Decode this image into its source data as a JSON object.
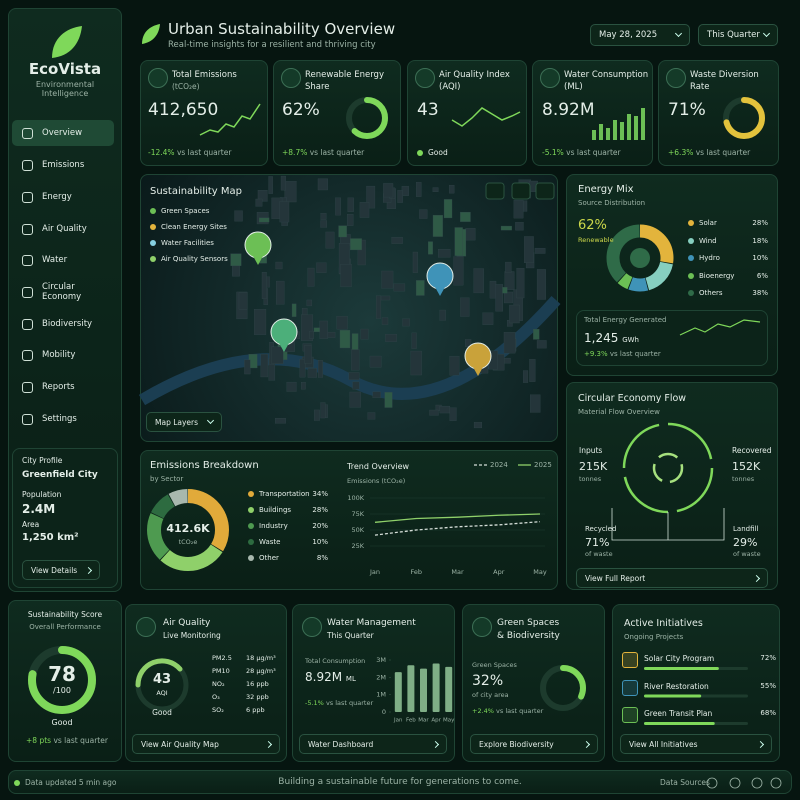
{
  "brand": {
    "name": "EcoVista",
    "tagline": "Environmental Intelligence"
  },
  "header": {
    "title": "Urban Sustainability Overview",
    "subtitle": "Real-time insights for a resilient and thriving city",
    "date": "May 28, 2025",
    "period": "This Quarter"
  },
  "nav": [
    "Overview",
    "Emissions",
    "Energy",
    "Air Quality",
    "Water",
    "Circular Economy",
    "Biodiversity",
    "Mobility",
    "Reports",
    "Settings"
  ],
  "city_profile": {
    "heading": "City Profile",
    "name": "Greenfield City",
    "population_label": "Population",
    "population": "2.4M",
    "area_label": "Area",
    "area": "1,250 km²",
    "button": "View Details"
  },
  "score": {
    "title": "Sustainability Score",
    "subtitle": "Overall Performance",
    "value": 78,
    "max_label": "/100",
    "status": "Good",
    "change": "+8 pts",
    "note": "vs last quarter"
  },
  "kpis": [
    {
      "title": "Total Emissions",
      "subtitle": "(tCO₂e)",
      "value": "412,650",
      "change": "-12.4%",
      "note": "vs last quarter"
    },
    {
      "title": "Renewable Energy",
      "subtitle": "Share",
      "value": 62,
      "unit": "%",
      "change": "+8.7%",
      "note": "vs last quarter"
    },
    {
      "title": "Air Quality Index",
      "subtitle": "(AQI)",
      "value": "43",
      "status": "Good"
    },
    {
      "title": "Water Consumption",
      "subtitle": "(ML)",
      "value": "8.92M",
      "change": "-5.1%",
      "note": "vs last quarter"
    },
    {
      "title": "Waste Diversion",
      "subtitle": "Rate",
      "value": 71,
      "unit": "%",
      "change": "+6.3%",
      "note": "vs last quarter"
    }
  ],
  "map": {
    "title": "Sustainability Map",
    "legend": [
      "Green Spaces",
      "Clean Energy Sites",
      "Water Facilities",
      "Air Quality Sensors"
    ],
    "button": "Map Layers"
  },
  "energy_mix": {
    "title": "Energy Mix",
    "subtitle": "Source Distribution",
    "renewable": 62,
    "unit": "%",
    "renewable_label": "Renewable",
    "sources": [
      {
        "name": "Solar",
        "value": 28,
        "color": "#e3b43c"
      },
      {
        "name": "Wind",
        "value": 18,
        "color": "#86cfc0"
      },
      {
        "name": "Hydro",
        "value": 10,
        "color": "#3f93b8"
      },
      {
        "name": "Bioenergy",
        "value": 6,
        "color": "#6cbf55"
      },
      {
        "name": "Others",
        "value": 38,
        "color": "#2f6b48"
      }
    ],
    "total_label": "Total Energy Generated",
    "total": "1,245",
    "total_unit": "GWh",
    "change": "+9.3%",
    "note": "vs last quarter"
  },
  "emissions": {
    "title": "Emissions Breakdown",
    "subtitle": "by Sector",
    "center_value": "412.6K",
    "center_unit": "tCO₂e",
    "unit": "%",
    "sectors": [
      {
        "name": "Transportation",
        "value": 34,
        "color": "#e1aa3a"
      },
      {
        "name": "Buildings",
        "value": 28,
        "color": "#8fd06a"
      },
      {
        "name": "Industry",
        "value": 20,
        "color": "#4e9a50"
      },
      {
        "name": "Waste",
        "value": 10,
        "color": "#2d6b40"
      },
      {
        "name": "Other",
        "value": 8,
        "color": "#a8b8ae"
      }
    ]
  },
  "trend": {
    "title": "Trend Overview",
    "subtitle": "Emissions (tCO₂e)",
    "categories": [
      "Jan",
      "Feb",
      "Mar",
      "Apr",
      "May"
    ],
    "ylim": [
      0,
      100000
    ],
    "yticks": [
      {
        "value": 25000,
        "label": "25K"
      },
      {
        "value": 50000,
        "label": "50K"
      },
      {
        "value": 75000,
        "label": "75K"
      },
      {
        "value": 100000,
        "label": "100K"
      }
    ],
    "series": [
      {
        "name": "2024",
        "color": "#d4ddd7",
        "dashed": true,
        "values": [
          42000,
          50000,
          55000,
          58000,
          63000
        ]
      },
      {
        "name": "2025",
        "color": "#8fd06a",
        "dashed": false,
        "values": [
          62000,
          68000,
          70000,
          73000,
          75000
        ]
      }
    ]
  },
  "circular": {
    "title": "Circular Economy Flow",
    "subtitle": "Material Flow Overview",
    "inputs_label": "Inputs",
    "inputs": "215K",
    "inputs_unit": "tonnes",
    "recovered_label": "Recovered",
    "recovered": "152K",
    "recovered_unit": "tonnes",
    "recycled_label": "Recycled",
    "recycled": "71%",
    "recycled_unit": "of waste",
    "landfill_label": "Landfill",
    "landfill": "29%",
    "landfill_unit": "of waste",
    "button": "View Full Report"
  },
  "air_quality": {
    "title": "Air Quality",
    "subtitle": "Live Monitoring",
    "value": "43",
    "unit": "AQI",
    "status": "Good",
    "pollutants": [
      {
        "name": "PM2.5",
        "value": "18 µg/m³"
      },
      {
        "name": "PM10",
        "value": "28 µg/m³"
      },
      {
        "name": "NO₂",
        "value": "16 ppb"
      },
      {
        "name": "O₃",
        "value": "32 ppb"
      },
      {
        "name": "SO₂",
        "value": "6 ppb"
      }
    ],
    "button": "View Air Quality Map"
  },
  "water": {
    "title": "Water Management",
    "subtitle": "This Quarter",
    "label": "Total Consumption",
    "value": "8.92M",
    "unit": "ML",
    "change": "-5.1%",
    "note": "vs last quarter",
    "chart": {
      "categories": [
        "Jan",
        "Feb",
        "Mar",
        "Apr",
        "May"
      ],
      "values": [
        2300000,
        2700000,
        2500000,
        2800000,
        2600000
      ],
      "color": "#7fae86",
      "ylim": [
        0,
        3000000
      ],
      "yticks": [
        0,
        {
          "value": 1000000,
          "label": "1M"
        },
        {
          "value": 2000000,
          "label": "2M"
        },
        {
          "value": 3000000,
          "label": "3M"
        }
      ]
    },
    "button": "Water Dashboard"
  },
  "green": {
    "title": "Green Spaces",
    "title2": "& Biodiversity",
    "label": "Green Spaces",
    "value": 32,
    "unit": "%",
    "sub": "of city area",
    "change": "+2.4%",
    "note": "vs last quarter",
    "button": "Explore Biodiversity"
  },
  "initiatives": {
    "title": "Active Initiatives",
    "subtitle": "Ongoing Projects",
    "unit": "%",
    "items": [
      {
        "name": "Solar City Program",
        "value": 72
      },
      {
        "name": "River Restoration",
        "value": 55
      },
      {
        "name": "Green Transit Plan",
        "value": 68
      }
    ],
    "button": "View All Initiatives"
  },
  "footer": {
    "status": "Data updated 5 min ago",
    "tagline": "Building a sustainable future for generations to come.",
    "link": "Data Sources"
  }
}
